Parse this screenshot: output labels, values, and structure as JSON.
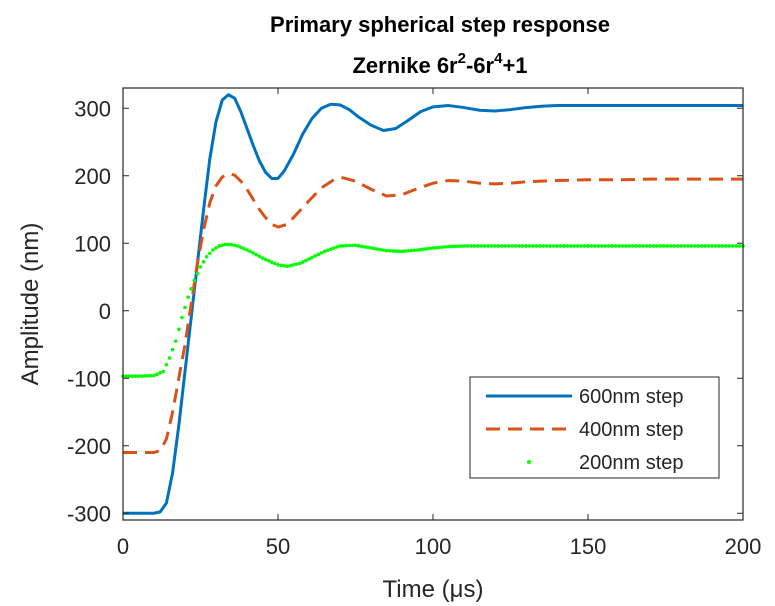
{
  "chart_data": {
    "type": "line",
    "title": "Primary spherical step response",
    "subtitle": {
      "prefix": "Zernike 6r",
      "sup1": "2",
      "middle": "-6r",
      "sup2": "4",
      "suffix": "+1"
    },
    "xlabel": "Time (μs)",
    "ylabel": "Amplitude (nm)",
    "xlim": [
      0,
      200
    ],
    "ylim": [
      -310,
      330
    ],
    "xticks": [
      0,
      50,
      100,
      150,
      200
    ],
    "xtick_labels": [
      "0",
      "50",
      "100",
      "150",
      "200"
    ],
    "yticks": [
      300,
      200,
      100,
      0,
      -100,
      -200,
      -300
    ],
    "ytick_labels": [
      "300",
      "200",
      "100",
      "0",
      "-100",
      "-200",
      "-300"
    ],
    "grid": false,
    "legend_position": "bottom-right",
    "series": [
      {
        "name": "600nm step",
        "style": "solid",
        "color": "#0072BD",
        "x": [
          0,
          5,
          10,
          12,
          14,
          16,
          18,
          20,
          22,
          24,
          26,
          28,
          30,
          32,
          34,
          36,
          38,
          40,
          42,
          44,
          46,
          48,
          50,
          52,
          55,
          58,
          61,
          64,
          67,
          70,
          73,
          76,
          80,
          84,
          88,
          92,
          96,
          100,
          105,
          110,
          115,
          120,
          125,
          130,
          135,
          140,
          145,
          150,
          160,
          170,
          180,
          190,
          200
        ],
        "y": [
          -300,
          -300,
          -300,
          -298,
          -285,
          -240,
          -170,
          -90,
          -10,
          70,
          150,
          225,
          280,
          312,
          320,
          315,
          295,
          270,
          245,
          222,
          205,
          196,
          196,
          207,
          232,
          262,
          285,
          300,
          306,
          305,
          298,
          287,
          275,
          267,
          270,
          282,
          295,
          302,
          304,
          301,
          297,
          296,
          298,
          301,
          303,
          304,
          304,
          304,
          304,
          304,
          304,
          304,
          304
        ]
      },
      {
        "name": "400nm step",
        "style": "dashed",
        "color": "#D95319",
        "x": [
          0,
          5,
          10,
          12,
          14,
          16,
          18,
          20,
          22,
          24,
          26,
          28,
          30,
          32,
          34,
          36,
          38,
          40,
          42,
          44,
          46,
          48,
          50,
          53,
          56,
          60,
          64,
          68,
          71,
          75,
          80,
          85,
          90,
          95,
          100,
          105,
          110,
          115,
          120,
          125,
          130,
          140,
          150,
          160,
          170,
          180,
          190,
          200
        ],
        "y": [
          -210,
          -210,
          -210,
          -207,
          -190,
          -150,
          -100,
          -50,
          10,
          70,
          120,
          160,
          185,
          198,
          203,
          201,
          192,
          180,
          165,
          150,
          138,
          128,
          124,
          128,
          143,
          163,
          182,
          194,
          197,
          192,
          180,
          170,
          172,
          181,
          189,
          193,
          192,
          189,
          188,
          189,
          191,
          193,
          194,
          194,
          195,
          195,
          195,
          195
        ]
      },
      {
        "name": "200nm step",
        "style": "dotted",
        "color": "#00FF00",
        "x": [
          0,
          5,
          10,
          13,
          15,
          17,
          19,
          21,
          23,
          25,
          27,
          29,
          31,
          33,
          35,
          37,
          39,
          41,
          43,
          45,
          47,
          50,
          53,
          57,
          61,
          65,
          70,
          75,
          80,
          85,
          90,
          95,
          100,
          105,
          110,
          120,
          130,
          140,
          150,
          160,
          170,
          180,
          190,
          200
        ],
        "y": [
          -97,
          -97,
          -96,
          -90,
          -70,
          -45,
          -10,
          20,
          45,
          65,
          80,
          90,
          96,
          98,
          98,
          96,
          92,
          88,
          83,
          78,
          74,
          68,
          66,
          70,
          79,
          88,
          96,
          97,
          93,
          89,
          88,
          90,
          93,
          95,
          96,
          96,
          96,
          96,
          96,
          96,
          96,
          96,
          96,
          96
        ]
      }
    ]
  }
}
